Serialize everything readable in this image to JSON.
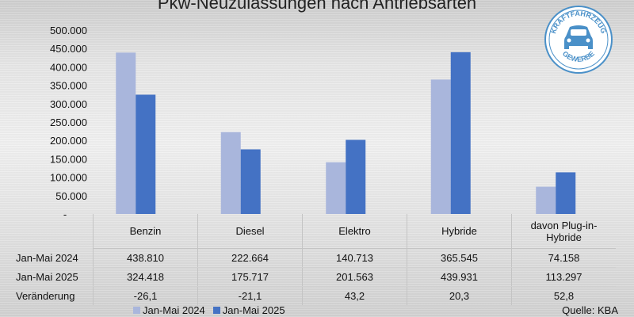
{
  "chart_data": {
    "type": "bar",
    "title": "Pkw-Neuzulassungen nach Antriebsarten",
    "categories": [
      "Benzin",
      "Diesel",
      "Elektro",
      "Hybride",
      "davon Plug-in-Hybride"
    ],
    "category_lines": [
      [
        "Benzin"
      ],
      [
        "Diesel"
      ],
      [
        "Elektro"
      ],
      [
        "Hybride"
      ],
      [
        "davon Plug-in-",
        "Hybride"
      ]
    ],
    "series": [
      {
        "name": "Jan-Mai 2024",
        "color": "#a9b6dc",
        "values": [
          438810,
          222664,
          140713,
          365545,
          74158
        ]
      },
      {
        "name": "Jan-Mai 2025",
        "color": "#4472c4",
        "values": [
          324418,
          175717,
          201563,
          439931,
          113297
        ]
      }
    ],
    "ylim": [
      0,
      500000
    ],
    "yticks": [
      "-",
      "50.000",
      "100.000",
      "150.000",
      "200.000",
      "250.000",
      "300.000",
      "350.000",
      "400.000",
      "450.000",
      "500.000"
    ],
    "grid": false,
    "legend_position": "bottom",
    "table": {
      "rows": [
        {
          "label": "Jan-Mai 2024",
          "cells": [
            "438.810",
            "222.664",
            "140.713",
            "365.545",
            "74.158"
          ]
        },
        {
          "label": "Jan-Mai 2025",
          "cells": [
            "324.418",
            "175.717",
            "201.563",
            "439.931",
            "113.297"
          ]
        },
        {
          "label": "Veränderung",
          "cells": [
            "-26,1",
            "-21,1",
            "43,2",
            "20,3",
            "52,8"
          ]
        }
      ]
    }
  },
  "source": "Quelle: KBA",
  "logo": {
    "top": "KRAFTFAHRZEUG",
    "bottom": "GEWERBE",
    "color": "#4a90c8"
  }
}
